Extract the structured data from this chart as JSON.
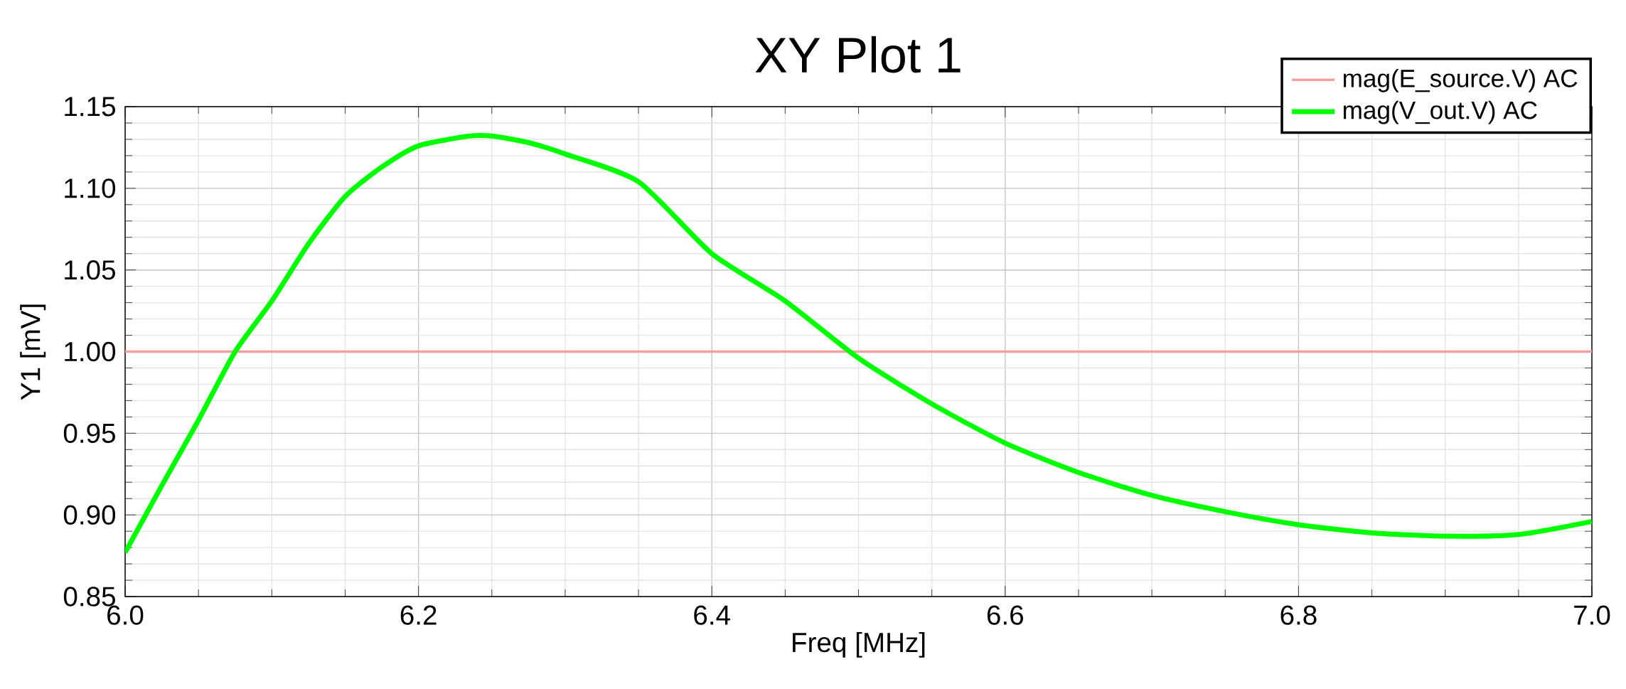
{
  "chart_data": {
    "type": "line",
    "title": "XY Plot 1",
    "xlabel": "Freq [MHz]",
    "ylabel": "Y1 [mV]",
    "x": [
      6.0,
      6.025,
      6.05,
      6.075,
      6.1,
      6.125,
      6.15,
      6.175,
      6.2,
      6.235,
      6.25,
      6.275,
      6.3,
      6.35,
      6.4,
      6.45,
      6.5,
      6.55,
      6.6,
      6.65,
      6.7,
      6.75,
      6.8,
      6.85,
      6.9,
      6.95,
      7.0
    ],
    "series": [
      {
        "name": "mag(E_source.V) AC",
        "color": "#f4a0a0",
        "values": [
          1.0,
          1.0,
          1.0,
          1.0,
          1.0,
          1.0,
          1.0,
          1.0,
          1.0,
          1.0,
          1.0,
          1.0,
          1.0,
          1.0,
          1.0,
          1.0,
          1.0,
          1.0,
          1.0,
          1.0,
          1.0,
          1.0,
          1.0,
          1.0,
          1.0,
          1.0,
          1.0
        ]
      },
      {
        "name": "mag(V_out.V) AC",
        "color": "#00ff00",
        "values": [
          0.877,
          0.918,
          0.958,
          1.0,
          1.031,
          1.066,
          1.095,
          1.113,
          1.126,
          1.132,
          1.132,
          1.128,
          1.121,
          1.104,
          1.06,
          1.031,
          0.996,
          0.968,
          0.944,
          0.926,
          0.912,
          0.902,
          0.894,
          0.889,
          0.887,
          0.888,
          0.896
        ]
      }
    ],
    "xlim": [
      6.0,
      7.0
    ],
    "ylim": [
      0.85,
      1.15
    ],
    "xticks": [
      {
        "value": 6.0,
        "label": "6.0"
      },
      6.2,
      6.4,
      6.6,
      6.8,
      {
        "value": 7.0,
        "label": "7.0"
      }
    ],
    "yticks": [
      0.85,
      {
        "value": 0.9,
        "label": "0.90"
      },
      0.95,
      {
        "value": 1.0,
        "label": "1.00"
      },
      1.05,
      {
        "value": 1.1,
        "label": "1.10"
      },
      1.15
    ],
    "grid": true,
    "legend": "top right",
    "line_style": "solid",
    "marker": "none"
  }
}
